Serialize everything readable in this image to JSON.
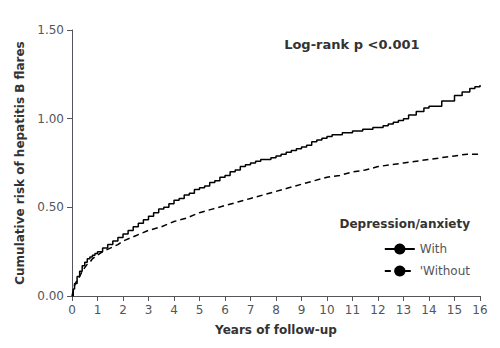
{
  "chart_data": {
    "type": "line",
    "annotation": "Log-rank p <0.001",
    "xlabel": "Years of follow-up",
    "ylabel": "Cumulative risk of hepatitis B flares",
    "xlim": [
      0,
      16
    ],
    "ylim": [
      0,
      1.5
    ],
    "xticks": [
      0,
      1,
      2,
      3,
      4,
      5,
      6,
      7,
      8,
      9,
      10,
      11,
      12,
      13,
      14,
      15,
      16
    ],
    "yticks": [
      {
        "value": 0.0,
        "label": "0.00"
      },
      {
        "value": 0.5,
        "label": "0.50"
      },
      {
        "value": 1.0,
        "label": "1.00"
      },
      {
        "value": 1.5,
        "label": "1.50"
      }
    ],
    "grid": false,
    "legend": "lower right",
    "legend_title": "Depression/anxiety",
    "series": [
      {
        "name": "With",
        "type": "step",
        "color": "#000000",
        "line_style": "solid",
        "x": [
          0,
          0.05,
          0.1,
          0.2,
          0.3,
          0.4,
          0.5,
          0.6,
          0.7,
          0.8,
          0.9,
          1.0,
          1.2,
          1.4,
          1.6,
          1.8,
          2.0,
          2.2,
          2.4,
          2.6,
          2.8,
          3.0,
          3.2,
          3.4,
          3.6,
          3.8,
          4.0,
          4.2,
          4.4,
          4.6,
          4.8,
          5.0,
          5.2,
          5.4,
          5.6,
          5.8,
          6.0,
          6.2,
          6.4,
          6.6,
          6.8,
          7.0,
          7.2,
          7.4,
          7.6,
          7.8,
          8.0,
          8.2,
          8.4,
          8.6,
          8.8,
          9.0,
          9.2,
          9.4,
          9.6,
          9.8,
          10.0,
          10.2,
          10.4,
          10.6,
          10.8,
          11.0,
          11.2,
          11.4,
          11.6,
          11.8,
          12.0,
          12.2,
          12.4,
          12.6,
          12.8,
          13.0,
          13.2,
          13.5,
          13.8,
          14.0,
          14.5,
          15.0,
          15.3,
          15.6,
          15.8,
          16.0
        ],
        "values": [
          0.0,
          0.04,
          0.07,
          0.11,
          0.14,
          0.17,
          0.19,
          0.21,
          0.22,
          0.23,
          0.24,
          0.25,
          0.27,
          0.29,
          0.31,
          0.33,
          0.35,
          0.37,
          0.39,
          0.41,
          0.43,
          0.45,
          0.47,
          0.49,
          0.5,
          0.52,
          0.54,
          0.55,
          0.57,
          0.58,
          0.6,
          0.61,
          0.62,
          0.64,
          0.65,
          0.67,
          0.68,
          0.7,
          0.71,
          0.73,
          0.74,
          0.75,
          0.76,
          0.77,
          0.77,
          0.78,
          0.79,
          0.8,
          0.81,
          0.82,
          0.83,
          0.84,
          0.85,
          0.87,
          0.88,
          0.89,
          0.9,
          0.91,
          0.91,
          0.92,
          0.92,
          0.93,
          0.93,
          0.94,
          0.94,
          0.95,
          0.95,
          0.96,
          0.97,
          0.98,
          0.99,
          1.0,
          1.02,
          1.04,
          1.06,
          1.07,
          1.1,
          1.13,
          1.15,
          1.17,
          1.18,
          1.19
        ]
      },
      {
        "name": "'Without",
        "type": "line",
        "color": "#000000",
        "line_style": "dashed",
        "x": [
          0,
          0.05,
          0.1,
          0.2,
          0.3,
          0.4,
          0.5,
          0.6,
          0.7,
          0.8,
          0.9,
          1.0,
          1.2,
          1.5,
          1.8,
          2.0,
          2.5,
          3.0,
          3.5,
          4.0,
          4.5,
          5.0,
          5.5,
          6.0,
          6.5,
          7.0,
          7.5,
          8.0,
          8.5,
          9.0,
          9.5,
          10.0,
          10.5,
          11.0,
          11.5,
          12.0,
          12.5,
          13.0,
          13.5,
          14.0,
          14.5,
          15.0,
          15.5,
          16.0
        ],
        "values": [
          0.0,
          0.03,
          0.06,
          0.09,
          0.11,
          0.14,
          0.16,
          0.18,
          0.19,
          0.21,
          0.22,
          0.23,
          0.25,
          0.27,
          0.29,
          0.31,
          0.34,
          0.37,
          0.39,
          0.42,
          0.44,
          0.47,
          0.49,
          0.51,
          0.53,
          0.55,
          0.57,
          0.59,
          0.61,
          0.63,
          0.65,
          0.67,
          0.68,
          0.7,
          0.71,
          0.73,
          0.74,
          0.75,
          0.76,
          0.77,
          0.78,
          0.79,
          0.8,
          0.8
        ]
      }
    ]
  }
}
